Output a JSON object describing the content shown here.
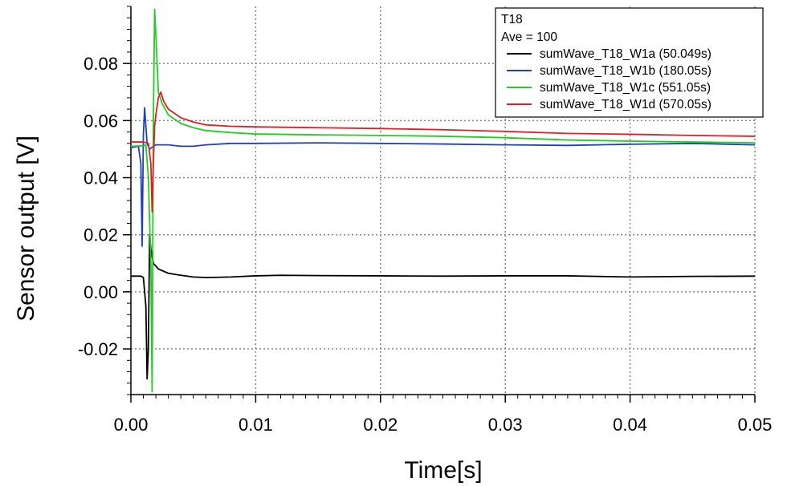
{
  "chart_data": {
    "type": "line",
    "xlabel": "Time[s]",
    "ylabel": "Sensor output [V]",
    "xlim": [
      0.0,
      0.05
    ],
    "ylim": [
      -0.036,
      0.1
    ],
    "x_ticks": [
      0.0,
      0.01,
      0.02,
      0.03,
      0.04,
      0.05
    ],
    "x_tick_labels": [
      "0.00",
      "0.01",
      "0.02",
      "0.03",
      "0.04",
      "0.05"
    ],
    "y_ticks": [
      -0.02,
      0.0,
      0.02,
      0.04,
      0.06,
      0.08
    ],
    "y_tick_labels": [
      "-0.02",
      "0.00",
      "0.02",
      "0.04",
      "0.06",
      "0.08"
    ],
    "grid": true,
    "legend": {
      "placement": "top-right",
      "title_lines": [
        "T18",
        "Ave = 100"
      ],
      "entries": [
        {
          "label": "sumWave_T18_W1a (50.049s)",
          "color": "#000000"
        },
        {
          "label": "sumWave_T18_W1b (180.05s)",
          "color": "#1f3fbf"
        },
        {
          "label": "sumWave_T18_W1c (551.05s)",
          "color": "#22cc22"
        },
        {
          "label": "sumWave_T18_W1d (570.05s)",
          "color": "#e02020"
        }
      ]
    },
    "series": [
      {
        "name": "sumWave_T18_W1a (50.049s)",
        "color": "#000000",
        "x": [
          0.0,
          0.0008,
          0.001,
          0.0012,
          0.0013,
          0.0014,
          0.0015,
          0.0016,
          0.0018,
          0.0022,
          0.003,
          0.004,
          0.005,
          0.006,
          0.008,
          0.01,
          0.012,
          0.015,
          0.02,
          0.025,
          0.03,
          0.035,
          0.04,
          0.045,
          0.05
        ],
        "y": [
          0.0055,
          0.0055,
          0.005,
          -0.005,
          -0.0305,
          -0.02,
          0.02,
          0.015,
          0.01,
          0.008,
          0.0065,
          0.0058,
          0.0052,
          0.005,
          0.0052,
          0.0056,
          0.0058,
          0.0057,
          0.0056,
          0.0055,
          0.0056,
          0.0056,
          0.0052,
          0.0054,
          0.0055
        ]
      },
      {
        "name": "sumWave_T18_W1b (180.05s)",
        "color": "#1f3fbf",
        "x": [
          0.0,
          0.0006,
          0.0008,
          0.0009,
          0.001,
          0.0011,
          0.0012,
          0.0013,
          0.0015,
          0.0018,
          0.002,
          0.003,
          0.004,
          0.005,
          0.006,
          0.008,
          0.01,
          0.015,
          0.02,
          0.025,
          0.03,
          0.035,
          0.04,
          0.045,
          0.05
        ],
        "y": [
          0.0505,
          0.051,
          0.045,
          0.016,
          0.055,
          0.0645,
          0.058,
          0.052,
          0.05,
          0.051,
          0.0515,
          0.0515,
          0.051,
          0.051,
          0.0515,
          0.052,
          0.052,
          0.0522,
          0.052,
          0.0518,
          0.0515,
          0.0513,
          0.0517,
          0.052,
          0.0515
        ]
      },
      {
        "name": "sumWave_T18_W1c (551.05s)",
        "color": "#22cc22",
        "x": [
          0.0,
          0.001,
          0.0012,
          0.0014,
          0.0016,
          0.0017,
          0.0018,
          0.0019,
          0.002,
          0.0022,
          0.0025,
          0.003,
          0.004,
          0.005,
          0.006,
          0.008,
          0.01,
          0.015,
          0.02,
          0.025,
          0.03,
          0.035,
          0.04,
          0.045,
          0.05
        ],
        "y": [
          0.051,
          0.0512,
          0.0515,
          0.04,
          0.01,
          -0.035,
          0.06,
          0.099,
          0.09,
          0.07,
          0.066,
          0.062,
          0.059,
          0.0575,
          0.0565,
          0.0558,
          0.0553,
          0.055,
          0.0548,
          0.0545,
          0.054,
          0.0532,
          0.0528,
          0.0525,
          0.0522
        ]
      },
      {
        "name": "sumWave_T18_W1d (570.05s)",
        "color": "#e02020",
        "x": [
          0.0,
          0.001,
          0.0014,
          0.0016,
          0.0017,
          0.0018,
          0.0019,
          0.002,
          0.0022,
          0.0024,
          0.0026,
          0.003,
          0.004,
          0.005,
          0.006,
          0.008,
          0.01,
          0.015,
          0.02,
          0.025,
          0.03,
          0.035,
          0.04,
          0.045,
          0.05
        ],
        "y": [
          0.0525,
          0.0525,
          0.052,
          0.045,
          0.028,
          0.045,
          0.058,
          0.062,
          0.068,
          0.07,
          0.067,
          0.064,
          0.061,
          0.0595,
          0.0585,
          0.058,
          0.0578,
          0.0575,
          0.0572,
          0.0568,
          0.0562,
          0.0555,
          0.0552,
          0.0548,
          0.0545
        ]
      }
    ]
  }
}
